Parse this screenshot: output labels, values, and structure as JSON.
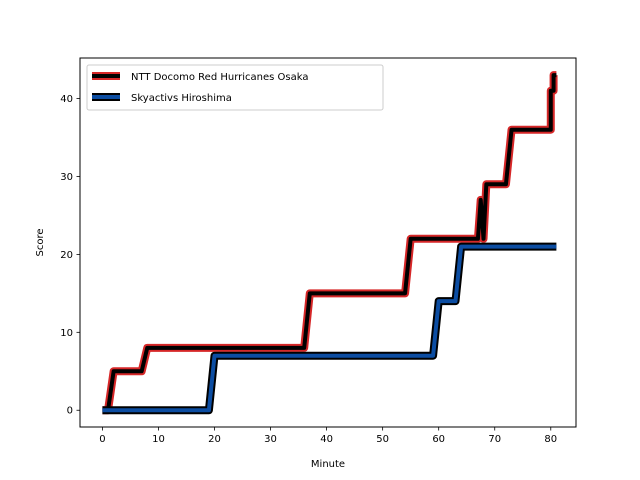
{
  "chart_data": {
    "type": "line",
    "title": "",
    "xlabel": "Minute",
    "ylabel": "Score",
    "xlim": [
      -4,
      84.5
    ],
    "ylim": [
      -2.15,
      45.2
    ],
    "xticks": [
      0,
      10,
      20,
      30,
      40,
      50,
      60,
      70,
      80
    ],
    "yticks": [
      0,
      10,
      20,
      30,
      40
    ],
    "grid": false,
    "legend_position": "upper-left",
    "series": [
      {
        "name": "NTT Docomo Red Hurricanes Osaka",
        "outer_color": "#d62728",
        "inner_color": "#000000",
        "x": [
          0,
          1,
          2,
          7,
          8,
          36,
          37,
          54,
          55,
          67,
          67.5,
          68,
          68.5,
          72,
          73,
          80,
          80,
          80.5,
          80.5,
          81
        ],
        "y": [
          0,
          0,
          5,
          5,
          8,
          8,
          15,
          15,
          22,
          22,
          27,
          22,
          29,
          29,
          36,
          36,
          41,
          41,
          43,
          43
        ]
      },
      {
        "name": "Skyactivs Hiroshima",
        "outer_color": "#000000",
        "inner_color": "#0c4da2",
        "x": [
          0,
          19,
          20,
          59,
          60,
          63,
          64,
          81
        ],
        "y": [
          0,
          0,
          7,
          7,
          14,
          14,
          21,
          21
        ]
      }
    ]
  }
}
